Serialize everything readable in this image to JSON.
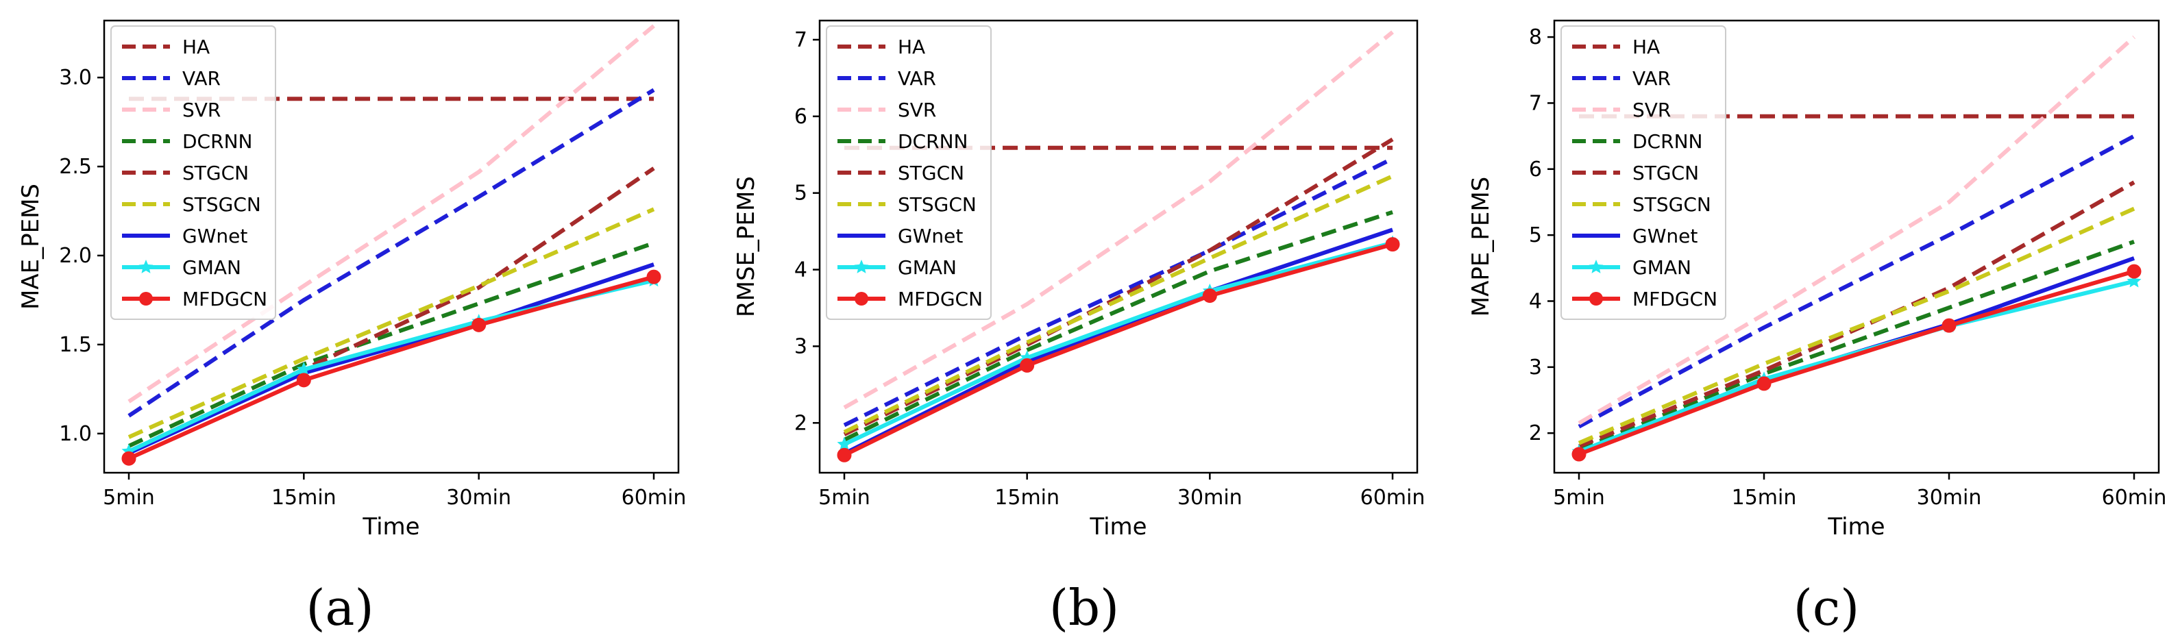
{
  "chart_data": [
    {
      "type": "line",
      "caption": "(a)",
      "xlabel": "Time",
      "ylabel": "MAE_PEMS",
      "categories": [
        "5min",
        "15min",
        "30min",
        "60min"
      ],
      "ylim": [
        0.78,
        3.32
      ],
      "yticks": [
        1.0,
        1.5,
        2.0,
        2.5,
        3.0
      ],
      "yticklabels": [
        "1.0",
        "1.5",
        "2.0",
        "2.5",
        "3.0"
      ],
      "legend_position": "top-left",
      "series": [
        {
          "name": "HA",
          "values": [
            2.88,
            2.88,
            2.88,
            2.88
          ],
          "color": "#a52a2a",
          "dash": true,
          "marker": "none"
        },
        {
          "name": "VAR",
          "values": [
            1.1,
            1.75,
            2.33,
            2.93
          ],
          "color": "#1f1fd8",
          "dash": true,
          "marker": "none"
        },
        {
          "name": "SVR",
          "values": [
            1.18,
            1.83,
            2.47,
            3.29
          ],
          "color": "#ffc0cb",
          "dash": true,
          "marker": "none"
        },
        {
          "name": "DCRNN",
          "values": [
            0.93,
            1.39,
            1.73,
            2.07
          ],
          "color": "#1c7c1c",
          "dash": true,
          "marker": "none"
        },
        {
          "name": "STGCN",
          "values": [
            0.9,
            1.36,
            1.82,
            2.49
          ],
          "color": "#a52a2a",
          "dash": true,
          "marker": "none"
        },
        {
          "name": "STSGCN",
          "values": [
            0.98,
            1.42,
            1.83,
            2.26
          ],
          "color": "#c8c81c",
          "dash": true,
          "marker": "none"
        },
        {
          "name": "GWnet",
          "values": [
            0.89,
            1.34,
            1.62,
            1.95
          ],
          "color": "#1c1cdc",
          "dash": false,
          "marker": "none"
        },
        {
          "name": "GMAN",
          "values": [
            0.9,
            1.36,
            1.63,
            1.86
          ],
          "color": "#22e6ee",
          "dash": false,
          "marker": "star"
        },
        {
          "name": "MFDGCN",
          "values": [
            0.86,
            1.3,
            1.61,
            1.88
          ],
          "color": "#ee2222",
          "dash": false,
          "marker": "circle"
        }
      ]
    },
    {
      "type": "line",
      "caption": "(b)",
      "xlabel": "Time",
      "ylabel": "RMSE_PEMS",
      "categories": [
        "5min",
        "15min",
        "30min",
        "60min"
      ],
      "ylim": [
        1.35,
        7.25
      ],
      "yticks": [
        2,
        3,
        4,
        5,
        6,
        7
      ],
      "yticklabels": [
        "2",
        "3",
        "4",
        "5",
        "6",
        "7"
      ],
      "legend_position": "top-left",
      "series": [
        {
          "name": "HA",
          "values": [
            5.59,
            5.59,
            5.59,
            5.59
          ],
          "color": "#a52a2a",
          "dash": true,
          "marker": "none"
        },
        {
          "name": "VAR",
          "values": [
            1.97,
            3.15,
            4.25,
            5.45
          ],
          "color": "#1f1fd8",
          "dash": true,
          "marker": "none"
        },
        {
          "name": "SVR",
          "values": [
            2.2,
            3.55,
            5.15,
            7.1
          ],
          "color": "#ffc0cb",
          "dash": true,
          "marker": "none"
        },
        {
          "name": "DCRNN",
          "values": [
            1.78,
            2.95,
            3.98,
            4.75
          ],
          "color": "#1c7c1c",
          "dash": true,
          "marker": "none"
        },
        {
          "name": "STGCN",
          "values": [
            1.85,
            3.02,
            4.25,
            5.7
          ],
          "color": "#a52a2a",
          "dash": true,
          "marker": "none"
        },
        {
          "name": "STSGCN",
          "values": [
            1.88,
            3.05,
            4.15,
            5.22
          ],
          "color": "#c8c81c",
          "dash": true,
          "marker": "none"
        },
        {
          "name": "GWnet",
          "values": [
            1.6,
            2.8,
            3.72,
            4.52
          ],
          "color": "#1c1cdc",
          "dash": false,
          "marker": "none"
        },
        {
          "name": "GMAN",
          "values": [
            1.72,
            2.85,
            3.72,
            4.35
          ],
          "color": "#22e6ee",
          "dash": false,
          "marker": "star"
        },
        {
          "name": "MFDGCN",
          "values": [
            1.58,
            2.75,
            3.66,
            4.33
          ],
          "color": "#ee2222",
          "dash": false,
          "marker": "circle"
        }
      ]
    },
    {
      "type": "line",
      "caption": "(c)",
      "xlabel": "Time",
      "ylabel": "MAPE_PEMS",
      "categories": [
        "5min",
        "15min",
        "30min",
        "60min"
      ],
      "ylim": [
        1.4,
        8.25
      ],
      "yticks": [
        2,
        3,
        4,
        5,
        6,
        7,
        8
      ],
      "yticklabels": [
        "2",
        "3",
        "4",
        "5",
        "6",
        "7",
        "8"
      ],
      "legend_position": "top-left",
      "series": [
        {
          "name": "HA",
          "values": [
            6.8,
            6.8,
            6.8,
            6.8
          ],
          "color": "#a52a2a",
          "dash": true,
          "marker": "none"
        },
        {
          "name": "VAR",
          "values": [
            2.1,
            3.6,
            5.0,
            6.5
          ],
          "color": "#1f1fd8",
          "dash": true,
          "marker": "none"
        },
        {
          "name": "SVR",
          "values": [
            2.15,
            3.8,
            5.5,
            8.0
          ],
          "color": "#ffc0cb",
          "dash": true,
          "marker": "none"
        },
        {
          "name": "DCRNN",
          "values": [
            1.75,
            2.9,
            3.9,
            4.9
          ],
          "color": "#1c7c1c",
          "dash": true,
          "marker": "none"
        },
        {
          "name": "STGCN",
          "values": [
            1.8,
            2.95,
            4.2,
            5.8
          ],
          "color": "#a52a2a",
          "dash": true,
          "marker": "none"
        },
        {
          "name": "STSGCN",
          "values": [
            1.85,
            3.05,
            4.15,
            5.4
          ],
          "color": "#c8c81c",
          "dash": true,
          "marker": "none"
        },
        {
          "name": "GWnet",
          "values": [
            1.7,
            2.8,
            3.65,
            4.65
          ],
          "color": "#1c1cdc",
          "dash": false,
          "marker": "none"
        },
        {
          "name": "GMAN",
          "values": [
            1.72,
            2.82,
            3.62,
            4.3
          ],
          "color": "#22e6ee",
          "dash": false,
          "marker": "star"
        },
        {
          "name": "MFDGCN",
          "values": [
            1.68,
            2.75,
            3.63,
            4.45
          ],
          "color": "#ee2222",
          "dash": false,
          "marker": "circle"
        }
      ]
    }
  ]
}
